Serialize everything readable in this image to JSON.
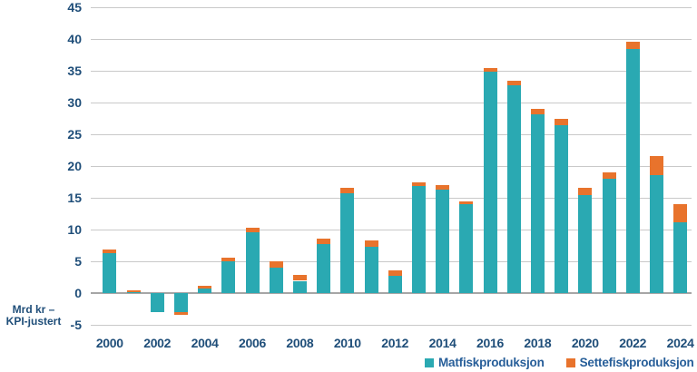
{
  "axis": {
    "y_title_line1": "Mrd kr –",
    "y_title_line2": "KPI-justert",
    "y_ticks": [
      45,
      40,
      35,
      30,
      25,
      20,
      15,
      10,
      5,
      0,
      -5
    ],
    "x_tick_labels": [
      "2000",
      "2002",
      "2004",
      "2006",
      "2008",
      "2010",
      "2012",
      "2014",
      "2016",
      "2018",
      "2020",
      "2022",
      "2024"
    ]
  },
  "legend": [
    {
      "label": "Matfiskproduksjon",
      "color": "#2AA9B2"
    },
    {
      "label": "Settefiskproduksjon",
      "color": "#E8732C"
    }
  ],
  "colors": {
    "bar_teal": "#2AA9B2",
    "bar_orange": "#E8732C",
    "tick_text": "#1F4E79",
    "legend_text": "#275E99",
    "gridline": "#C9C9C9",
    "zero_axis": "#A6A6A6",
    "background": "#FFFFFF"
  },
  "chart_data": {
    "type": "bar",
    "stacked": true,
    "title": "",
    "ylabel": "Mrd kr – KPI-justert",
    "ylim": [
      -5,
      45
    ],
    "grid": true,
    "legend_position": "bottom-right",
    "categories": [
      "2000",
      "2001",
      "2002",
      "2003",
      "2004",
      "2005",
      "2006",
      "2007",
      "2008",
      "2009",
      "2010",
      "2011",
      "2012",
      "2013",
      "2014",
      "2015",
      "2016",
      "2017",
      "2018",
      "2019",
      "2020",
      "2021",
      "2022",
      "2023",
      "2024"
    ],
    "series": [
      {
        "name": "Matfiskproduksjon",
        "color": "#2AA9B2",
        "values": [
          6.4,
          0.1,
          -3.0,
          -3.0,
          0.8,
          5.1,
          9.6,
          4.0,
          1.9,
          7.7,
          15.8,
          7.3,
          2.8,
          16.8,
          16.3,
          14.1,
          34.8,
          32.8,
          28.2,
          26.4,
          15.4,
          18.0,
          38.4,
          18.6,
          11.1
        ]
      },
      {
        "name": "Settefiskproduksjon",
        "color": "#E8732C",
        "values": [
          0.5,
          0.3,
          0.0,
          -0.4,
          0.4,
          0.5,
          0.7,
          1.0,
          0.9,
          0.9,
          0.8,
          1.0,
          0.8,
          0.6,
          0.7,
          0.4,
          0.6,
          0.7,
          0.8,
          1.0,
          1.2,
          1.0,
          1.2,
          3.0,
          2.9
        ]
      }
    ]
  }
}
